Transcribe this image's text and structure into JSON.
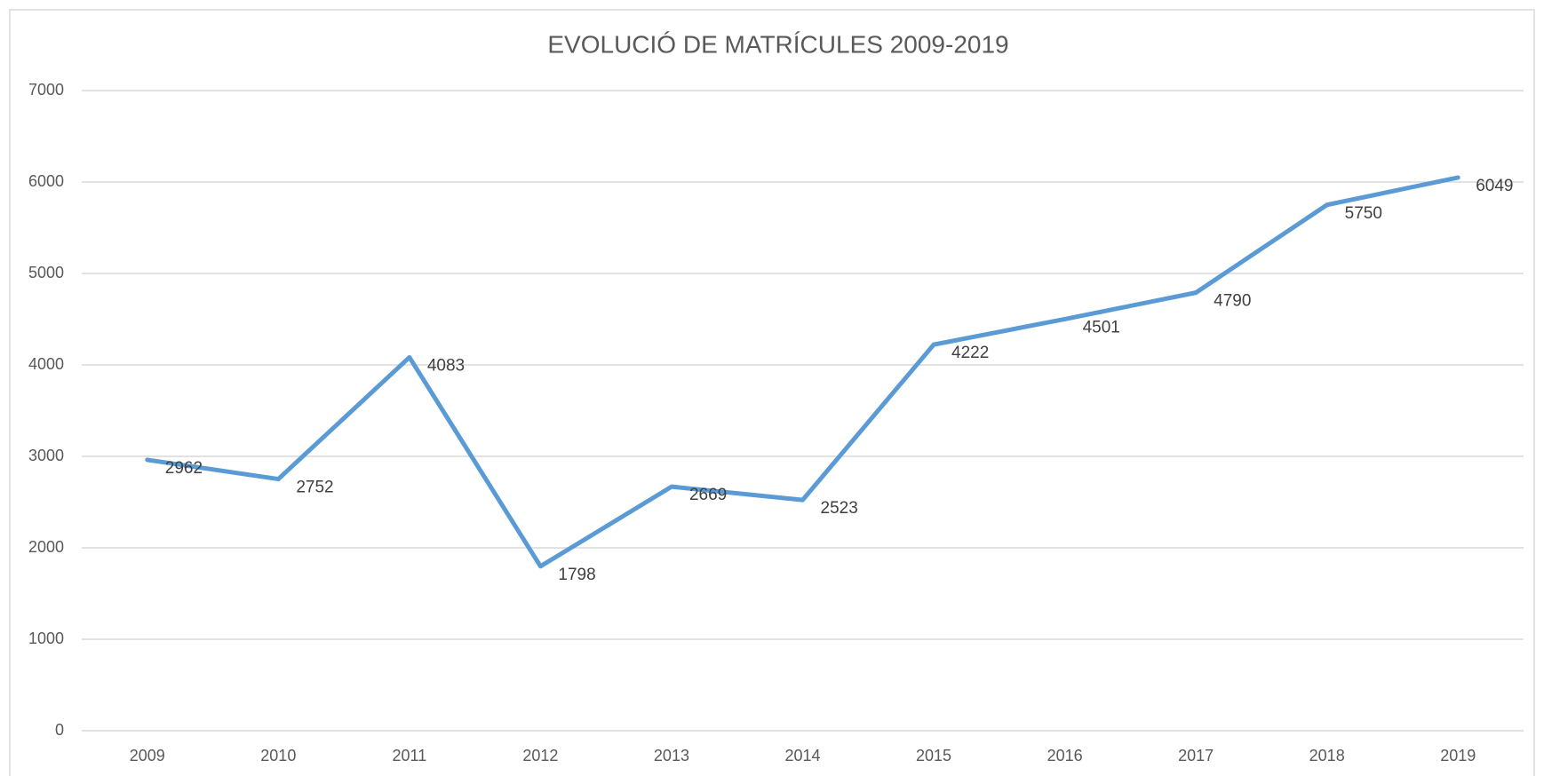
{
  "chart_data": {
    "type": "line",
    "title": "EVOLUCIÓ DE MATRÍCULES 2009-2019",
    "categories": [
      "2009",
      "2010",
      "2011",
      "2012",
      "2013",
      "2014",
      "2015",
      "2016",
      "2017",
      "2018",
      "2019"
    ],
    "series": [
      {
        "name": null,
        "color": "#5b9bd5",
        "values": [
          2962,
          2752,
          4083,
          1798,
          2669,
          2523,
          4222,
          4501,
          4790,
          5750,
          6049
        ]
      }
    ],
    "ylim": [
      0,
      7000
    ],
    "yticks": [
      0,
      1000,
      2000,
      3000,
      4000,
      5000,
      6000,
      7000
    ],
    "grid": true,
    "data_labels": true
  }
}
